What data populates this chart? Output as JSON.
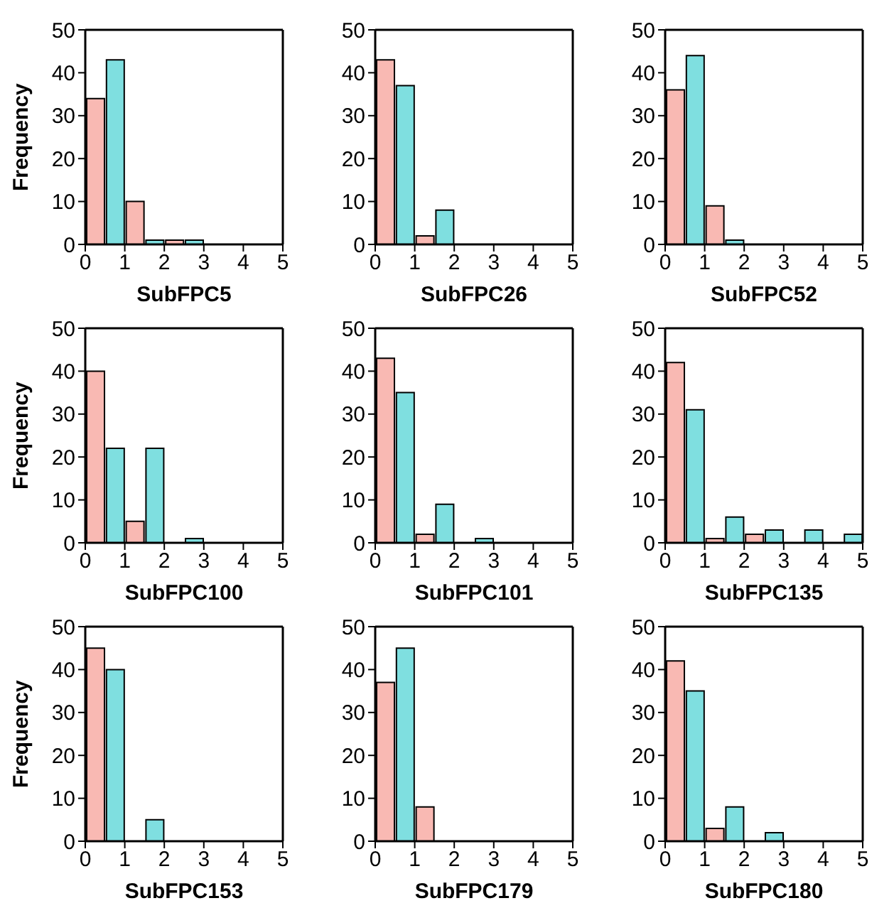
{
  "chart_data": [
    {
      "type": "histogram",
      "xlabel": "SubFPC5",
      "ylabel": "Frequency",
      "bins": [
        0,
        0.5,
        1,
        1.5,
        2,
        2.5,
        3,
        3.5,
        4,
        4.5,
        5
      ],
      "values": [
        34,
        43,
        10,
        1,
        1,
        1,
        0,
        0,
        0,
        0
      ],
      "colors": [
        "#f9b9b3",
        "#7fdfe0",
        "#f9b9b3",
        "#7fdfe0",
        "#f9b9b3",
        "#7fdfe0",
        "#f9b9b3",
        "#7fdfe0",
        "#f9b9b3",
        "#7fdfe0"
      ],
      "xlim": [
        0,
        5
      ],
      "xticks": [
        0,
        1,
        2,
        3,
        4,
        5
      ],
      "ylim": [
        0,
        50
      ],
      "yticks": [
        0,
        10,
        20,
        30,
        40,
        50
      ]
    },
    {
      "type": "histogram",
      "xlabel": "SubFPC26",
      "bins": [
        0,
        0.5,
        1,
        1.5,
        2,
        2.5,
        3,
        3.5,
        4,
        4.5,
        5
      ],
      "values": [
        43,
        37,
        2,
        8,
        0,
        0,
        0,
        0,
        0,
        0
      ],
      "colors": [
        "#f9b9b3",
        "#7fdfe0",
        "#f9b9b3",
        "#7fdfe0",
        "#f9b9b3",
        "#7fdfe0",
        "#f9b9b3",
        "#7fdfe0",
        "#f9b9b3",
        "#7fdfe0"
      ],
      "xlim": [
        0,
        5
      ],
      "xticks": [
        0,
        1,
        2,
        3,
        4,
        5
      ],
      "ylim": [
        0,
        50
      ],
      "yticks": [
        0,
        10,
        20,
        30,
        40,
        50
      ]
    },
    {
      "type": "histogram",
      "xlabel": "SubFPC52",
      "bins": [
        0,
        0.5,
        1,
        1.5,
        2,
        2.5,
        3,
        3.5,
        4,
        4.5,
        5
      ],
      "values": [
        36,
        44,
        9,
        1,
        0,
        0,
        0,
        0,
        0,
        0
      ],
      "colors": [
        "#f9b9b3",
        "#7fdfe0",
        "#f9b9b3",
        "#7fdfe0",
        "#f9b9b3",
        "#7fdfe0",
        "#f9b9b3",
        "#7fdfe0",
        "#f9b9b3",
        "#7fdfe0"
      ],
      "xlim": [
        0,
        5
      ],
      "xticks": [
        0,
        1,
        2,
        3,
        4,
        5
      ],
      "ylim": [
        0,
        50
      ],
      "yticks": [
        0,
        10,
        20,
        30,
        40,
        50
      ]
    },
    {
      "type": "histogram",
      "xlabel": "SubFPC100",
      "ylabel": "Frequency",
      "bins": [
        0,
        0.5,
        1,
        1.5,
        2,
        2.5,
        3,
        3.5,
        4,
        4.5,
        5
      ],
      "values": [
        40,
        22,
        5,
        22,
        0,
        1,
        0,
        0,
        0,
        0
      ],
      "colors": [
        "#f9b9b3",
        "#7fdfe0",
        "#f9b9b3",
        "#7fdfe0",
        "#f9b9b3",
        "#7fdfe0",
        "#f9b9b3",
        "#7fdfe0",
        "#f9b9b3",
        "#7fdfe0"
      ],
      "xlim": [
        0,
        5
      ],
      "xticks": [
        0,
        1,
        2,
        3,
        4,
        5
      ],
      "ylim": [
        0,
        50
      ],
      "yticks": [
        0,
        10,
        20,
        30,
        40,
        50
      ]
    },
    {
      "type": "histogram",
      "xlabel": "SubFPC101",
      "bins": [
        0,
        0.5,
        1,
        1.5,
        2,
        2.5,
        3,
        3.5,
        4,
        4.5,
        5
      ],
      "values": [
        43,
        35,
        2,
        9,
        0,
        1,
        0,
        0,
        0,
        0
      ],
      "colors": [
        "#f9b9b3",
        "#7fdfe0",
        "#f9b9b3",
        "#7fdfe0",
        "#f9b9b3",
        "#7fdfe0",
        "#f9b9b3",
        "#7fdfe0",
        "#f9b9b3",
        "#7fdfe0"
      ],
      "xlim": [
        0,
        5
      ],
      "xticks": [
        0,
        1,
        2,
        3,
        4,
        5
      ],
      "ylim": [
        0,
        50
      ],
      "yticks": [
        0,
        10,
        20,
        30,
        40,
        50
      ]
    },
    {
      "type": "histogram",
      "xlabel": "SubFPC135",
      "bins": [
        0,
        0.5,
        1,
        1.5,
        2,
        2.5,
        3,
        3.5,
        4,
        4.5,
        5
      ],
      "values": [
        42,
        31,
        1,
        6,
        2,
        3,
        0,
        3,
        0,
        2
      ],
      "colors": [
        "#f9b9b3",
        "#7fdfe0",
        "#f9b9b3",
        "#7fdfe0",
        "#f9b9b3",
        "#7fdfe0",
        "#f9b9b3",
        "#7fdfe0",
        "#f9b9b3",
        "#7fdfe0"
      ],
      "xlim": [
        0,
        5
      ],
      "xticks": [
        0,
        1,
        2,
        3,
        4,
        5
      ],
      "ylim": [
        0,
        50
      ],
      "yticks": [
        0,
        10,
        20,
        30,
        40,
        50
      ]
    },
    {
      "type": "histogram",
      "xlabel": "SubFPC153",
      "ylabel": "Frequency",
      "bins": [
        0,
        0.5,
        1,
        1.5,
        2,
        2.5,
        3,
        3.5,
        4,
        4.5,
        5
      ],
      "values": [
        45,
        40,
        0,
        5,
        0,
        0,
        0,
        0,
        0,
        0
      ],
      "colors": [
        "#f9b9b3",
        "#7fdfe0",
        "#f9b9b3",
        "#7fdfe0",
        "#f9b9b3",
        "#7fdfe0",
        "#f9b9b3",
        "#7fdfe0",
        "#f9b9b3",
        "#7fdfe0"
      ],
      "xlim": [
        0,
        5
      ],
      "xticks": [
        0,
        1,
        2,
        3,
        4,
        5
      ],
      "ylim": [
        0,
        50
      ],
      "yticks": [
        0,
        10,
        20,
        30,
        40,
        50
      ]
    },
    {
      "type": "histogram",
      "xlabel": "SubFPC179",
      "bins": [
        0,
        0.5,
        1,
        1.5,
        2,
        2.5,
        3,
        3.5,
        4,
        4.5,
        5
      ],
      "values": [
        37,
        45,
        8,
        0,
        0,
        0,
        0,
        0,
        0,
        0
      ],
      "colors": [
        "#f9b9b3",
        "#7fdfe0",
        "#f9b9b3",
        "#7fdfe0",
        "#f9b9b3",
        "#7fdfe0",
        "#f9b9b3",
        "#7fdfe0",
        "#f9b9b3",
        "#7fdfe0"
      ],
      "xlim": [
        0,
        5
      ],
      "xticks": [
        0,
        1,
        2,
        3,
        4,
        5
      ],
      "ylim": [
        0,
        50
      ],
      "yticks": [
        0,
        10,
        20,
        30,
        40,
        50
      ]
    },
    {
      "type": "histogram",
      "xlabel": "SubFPC180",
      "bins": [
        0,
        0.5,
        1,
        1.5,
        2,
        2.5,
        3,
        3.5,
        4,
        4.5,
        5
      ],
      "values": [
        42,
        35,
        3,
        8,
        0,
        2,
        0,
        0,
        0,
        0
      ],
      "colors": [
        "#f9b9b3",
        "#7fdfe0",
        "#f9b9b3",
        "#7fdfe0",
        "#f9b9b3",
        "#7fdfe0",
        "#f9b9b3",
        "#7fdfe0",
        "#f9b9b3",
        "#7fdfe0"
      ],
      "xlim": [
        0,
        5
      ],
      "xticks": [
        0,
        1,
        2,
        3,
        4,
        5
      ],
      "ylim": [
        0,
        50
      ],
      "yticks": [
        0,
        10,
        20,
        30,
        40,
        50
      ]
    }
  ]
}
